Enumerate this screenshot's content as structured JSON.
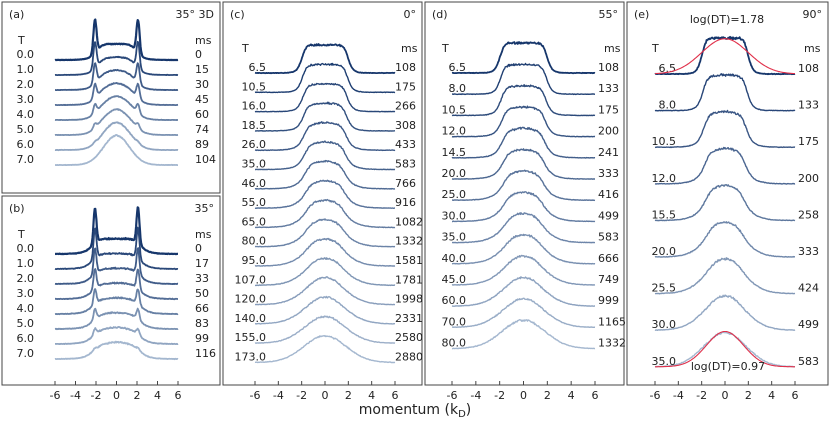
{
  "chart_data": {
    "type": "line",
    "xlabel": "momentum (k",
    "xlabel_sub": "D",
    "xlabel_close": ")",
    "x_range": [
      -6,
      6
    ],
    "x_ticks": [
      "-6",
      "-4",
      "-2",
      "0",
      "2",
      "4",
      "6"
    ],
    "panels": [
      {
        "id": "a",
        "label": "(a)",
        "angle": "35° 3D",
        "left_header": "T",
        "right_header": "ms",
        "shape": "3d",
        "T": [
          "0.0",
          "1.0",
          "2.0",
          "3.0",
          "4.0",
          "5.0",
          "6.0",
          "7.0"
        ],
        "ms": [
          "0",
          "15",
          "30",
          "45",
          "60",
          "74",
          "89",
          "104"
        ]
      },
      {
        "id": "b",
        "label": "(b)",
        "angle": "35°",
        "left_header": "T",
        "right_header": "ms",
        "shape": "peaks",
        "T": [
          "0.0",
          "1.0",
          "2.0",
          "3.0",
          "4.0",
          "5.0",
          "6.0",
          "7.0"
        ],
        "ms": [
          "0",
          "17",
          "33",
          "50",
          "66",
          "83",
          "99",
          "116"
        ]
      },
      {
        "id": "c",
        "label": "(c)",
        "angle": "0°",
        "left_header": "T",
        "right_header": "ms",
        "shape": "flat",
        "T": [
          "6.5",
          "10.5",
          "16.0",
          "18.5",
          "26.0",
          "35.0",
          "46.0",
          "55.0",
          "65.0",
          "80.0",
          "95.0",
          "107.0",
          "120.0",
          "140.0",
          "155.0",
          "173.0"
        ],
        "ms": [
          "108",
          "175",
          "266",
          "308",
          "433",
          "583",
          "766",
          "916",
          "1082",
          "1332",
          "1581",
          "1781",
          "1998",
          "2331",
          "2580",
          "2880"
        ]
      },
      {
        "id": "d",
        "label": "(d)",
        "angle": "55°",
        "left_header": "T",
        "right_header": "ms",
        "shape": "flat",
        "T": [
          "6.5",
          "8.0",
          "10.5",
          "12.0",
          "14.5",
          "20.0",
          "25.0",
          "30.0",
          "35.0",
          "40.0",
          "45.0",
          "60.0",
          "70.0",
          "80.0"
        ],
        "ms": [
          "108",
          "133",
          "175",
          "200",
          "241",
          "333",
          "416",
          "499",
          "583",
          "666",
          "749",
          "999",
          "1165",
          "1332"
        ]
      },
      {
        "id": "e",
        "label": "(e)",
        "angle": "90°",
        "left_header": "T",
        "right_header": "ms",
        "shape": "flat",
        "T": [
          "6.5",
          "8.0",
          "10.5",
          "12.0",
          "15.5",
          "20.0",
          "25.5",
          "30.0",
          "35.0"
        ],
        "ms": [
          "108",
          "133",
          "175",
          "200",
          "258",
          "333",
          "424",
          "499",
          "583"
        ],
        "fit_labels": [
          "log(DT)=1.78",
          "log(DT)=0.97"
        ]
      }
    ],
    "colors": {
      "dark": "#16366b",
      "light": "#a4b7cf",
      "fit": "#e0304a",
      "frame": "#444444"
    }
  }
}
